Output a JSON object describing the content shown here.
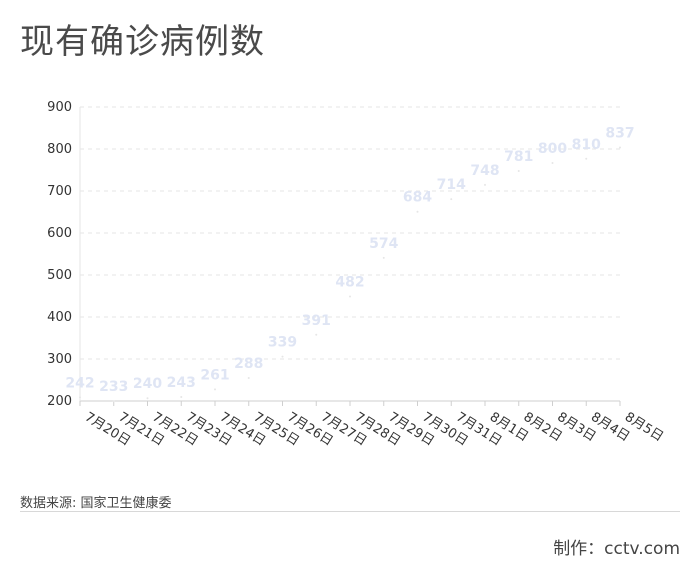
{
  "title": "现有确诊病例数",
  "source": "数据来源: 国家卫生健康委",
  "credit": "制作：cctv.com",
  "colors": {
    "label": "#dfe5f4",
    "grid": "#e6e6e6",
    "axis": "#cfcfcf"
  },
  "chart_data": {
    "type": "line",
    "title": "现有确诊病例数",
    "xlabel": "",
    "ylabel": "",
    "ylim": [
      200,
      900
    ],
    "yticks": [
      200,
      300,
      400,
      500,
      600,
      700,
      800,
      900
    ],
    "grid": true,
    "categories": [
      "7月20日",
      "7月21日",
      "7月22日",
      "7月23日",
      "7月24日",
      "7月25日",
      "7月26日",
      "7月27日",
      "7月28日",
      "7月29日",
      "7月30日",
      "7月31日",
      "8月1日",
      "8月2日",
      "8月3日",
      "8月4日",
      "8月5日"
    ],
    "values": [
      242,
      233,
      240,
      243,
      261,
      288,
      339,
      391,
      482,
      574,
      684,
      714,
      748,
      781,
      800,
      810,
      837
    ]
  }
}
